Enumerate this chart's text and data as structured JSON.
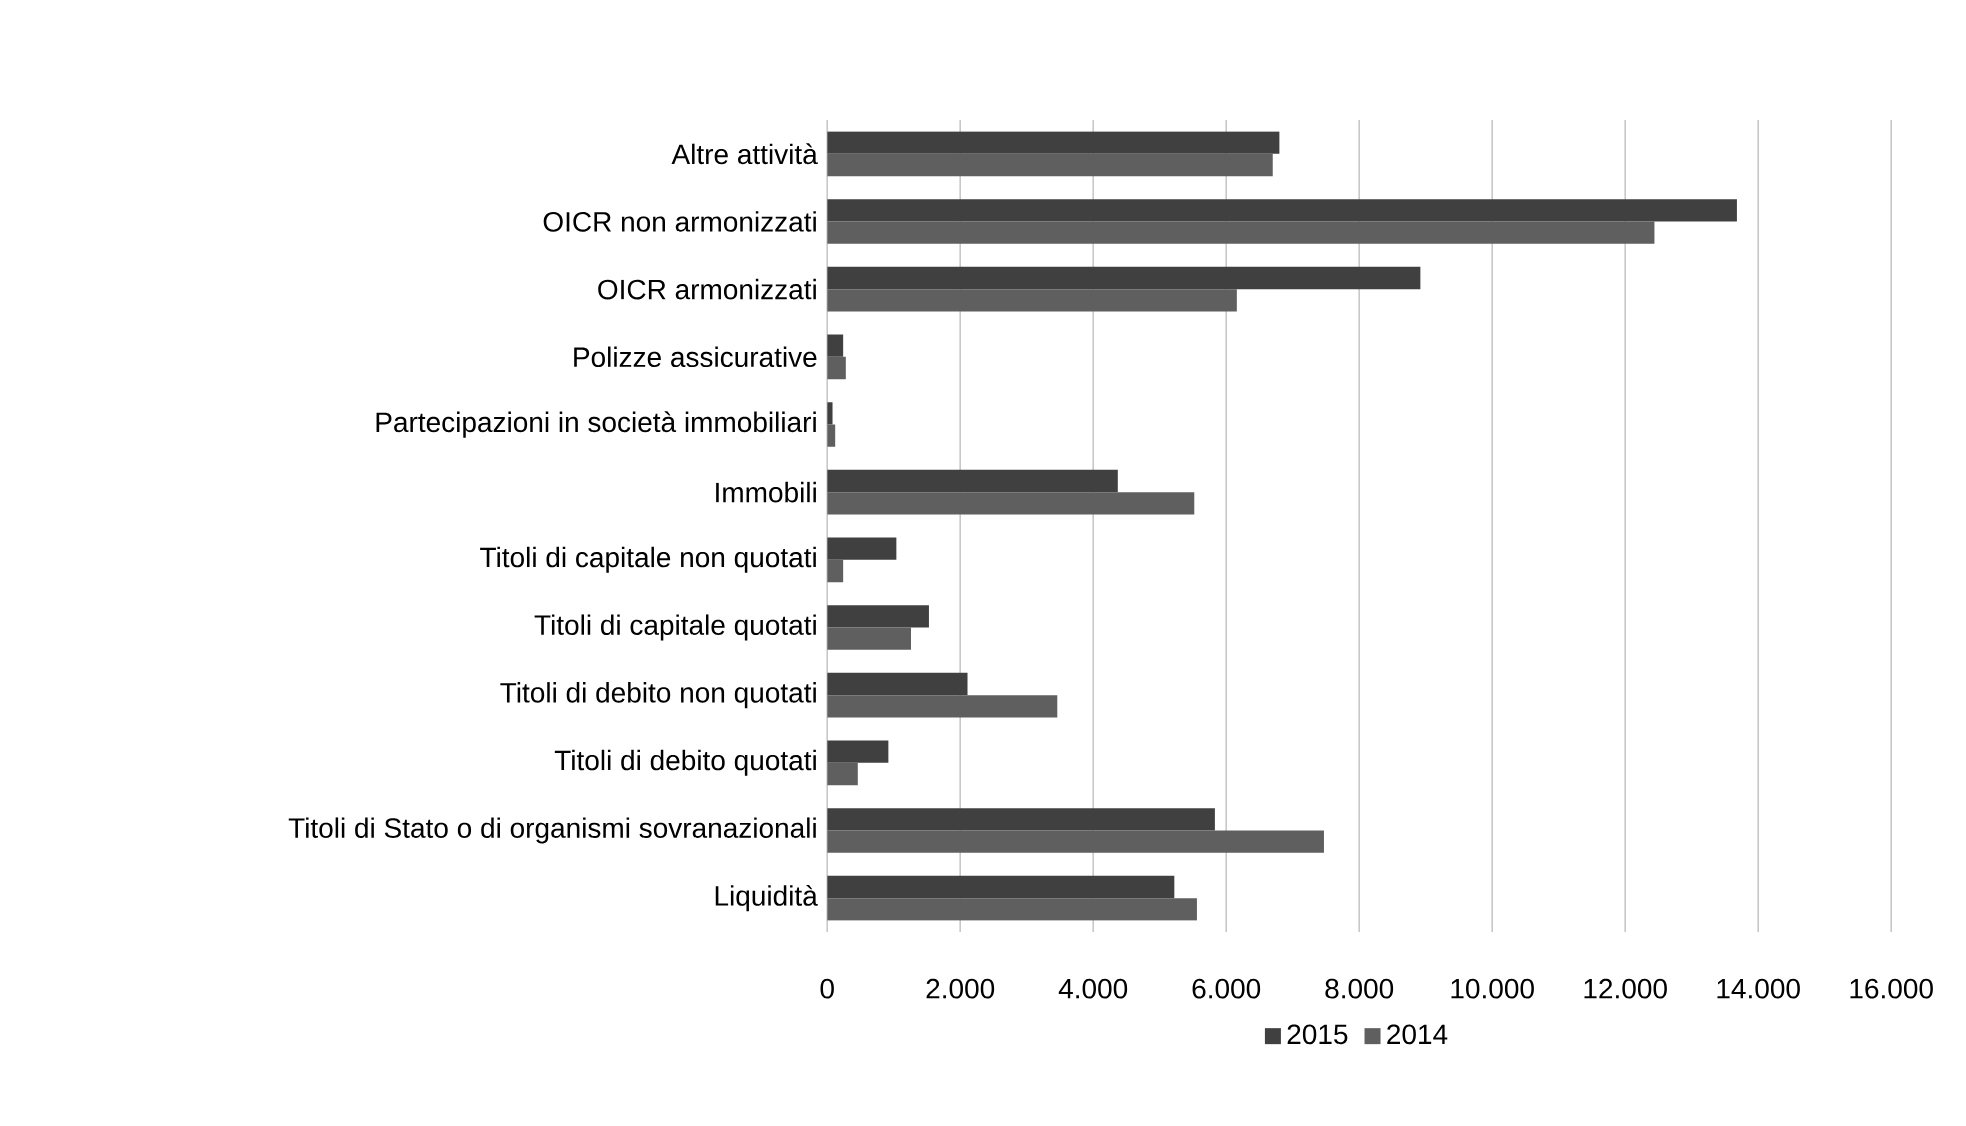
{
  "chart_data": {
    "type": "bar",
    "orientation": "horizontal",
    "categories": [
      "Altre attività",
      "OICR non armonizzati",
      "OICR armonizzati",
      "Polizze assicurative",
      "Partecipazioni in società immobiliari",
      "Immobili",
      "Titoli di capitale non quotati",
      "Titoli di capitale quotati",
      "Titoli di debito non quotati",
      "Titoli di debito quotati",
      "Titoli di Stato o di organismi sovranazionali",
      "Liquidità"
    ],
    "series": [
      {
        "name": "2015",
        "color": "#404040",
        "values": [
          6800,
          13680,
          8920,
          240,
          80,
          4370,
          1040,
          1530,
          2110,
          920,
          5830,
          5220
        ]
      },
      {
        "name": "2014",
        "color": "#5f5f5f",
        "values": [
          6700,
          12440,
          6160,
          280,
          120,
          5520,
          240,
          1260,
          3460,
          460,
          7470,
          5560
        ]
      }
    ],
    "xlim": [
      0,
      16000
    ],
    "xticks": [
      0,
      {
        "value": 2000,
        "label": "2.000"
      },
      {
        "value": 4000,
        "label": "4.000"
      },
      {
        "value": 6000,
        "label": "6.000"
      },
      {
        "value": 8000,
        "label": "8.000"
      },
      {
        "value": 10000,
        "label": "10.000"
      },
      {
        "value": 12000,
        "label": "12.000"
      },
      {
        "value": 14000,
        "label": "14.000"
      },
      {
        "value": 16000,
        "label": "16.000"
      }
    ],
    "grid": "x",
    "legend": "bottom"
  }
}
